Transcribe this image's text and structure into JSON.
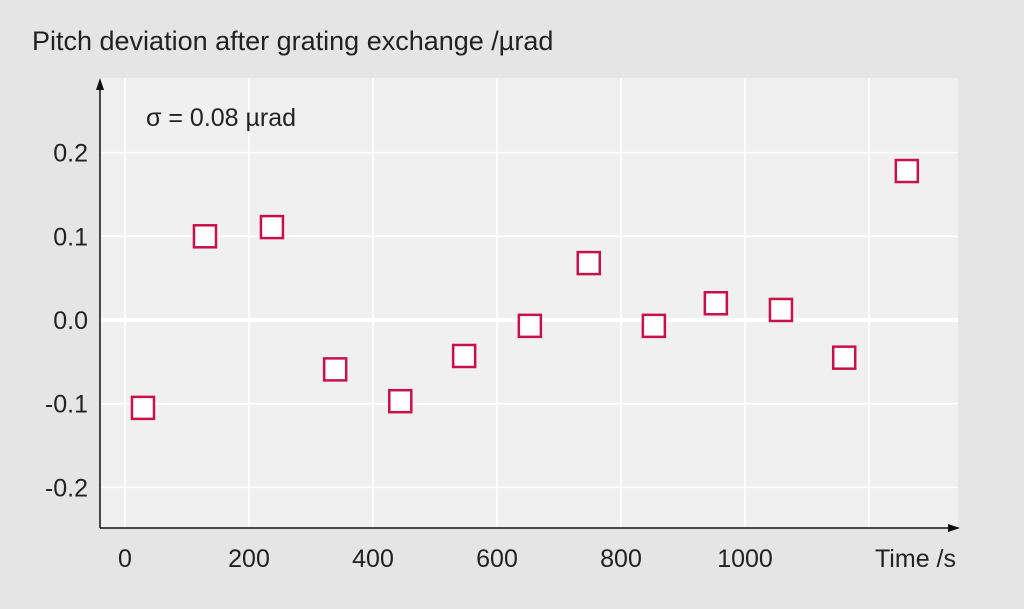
{
  "chart_data": {
    "type": "scatter",
    "title": "Pitch deviation after grating exchange /µrad",
    "annotation": "σ = 0.08 µrad",
    "xlabel": "Time /s",
    "ylabel": "",
    "xlim": [
      -40,
      1340
    ],
    "ylim": [
      -0.25,
      0.29
    ],
    "xticks": [
      0,
      200,
      400,
      600,
      800,
      1000
    ],
    "xtick_labels": [
      "0",
      "200",
      "400",
      "600",
      "800",
      "1000"
    ],
    "xgrid": [
      0,
      200,
      400,
      600,
      800,
      1000,
      1200
    ],
    "yticks": [
      0.2,
      0.1,
      0.0,
      -0.1,
      -0.2
    ],
    "ytick_labels": [
      "0.2",
      "0.1",
      "0.0",
      "-0.1",
      "-0.2"
    ],
    "grid": true,
    "marker_color": "#c8104a",
    "series": [
      {
        "name": "Pitch deviation",
        "x": [
          29,
          129,
          237,
          339,
          444,
          547,
          653,
          748,
          853,
          953,
          1058,
          1160,
          1261
        ],
        "y": [
          -0.105,
          0.1,
          0.111,
          -0.059,
          -0.097,
          -0.043,
          -0.007,
          0.068,
          -0.007,
          0.02,
          0.012,
          -0.045,
          0.178
        ]
      }
    ]
  }
}
